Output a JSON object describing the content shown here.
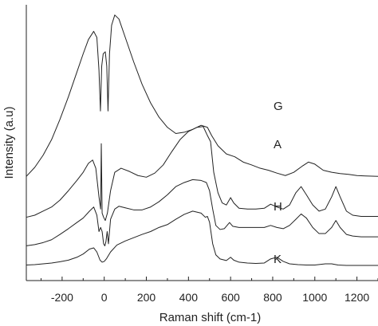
{
  "chart_data": {
    "type": "line",
    "title": "",
    "xlabel": "Raman shift (cm-1)",
    "ylabel": "Intensity (a.u)",
    "xlim": [
      -370,
      1300
    ],
    "x_ticks": [
      -200,
      0,
      200,
      400,
      600,
      800,
      1000,
      1200
    ],
    "x_tick_labels": [
      "-200",
      "0",
      "200",
      "400",
      "600",
      "800",
      "1000",
      "1200"
    ],
    "y_ticks_shown": false,
    "grid": false,
    "series": [
      {
        "name": "G",
        "points": [
          [
            -370,
            2.2
          ],
          [
            -330,
            2.42
          ],
          [
            -290,
            2.72
          ],
          [
            -250,
            3.1
          ],
          [
            -210,
            3.6
          ],
          [
            -170,
            4.15
          ],
          [
            -130,
            4.75
          ],
          [
            -100,
            5.2
          ],
          [
            -75,
            5.55
          ],
          [
            -50,
            5.75
          ],
          [
            -35,
            5.6
          ],
          [
            -25,
            4.8
          ],
          [
            -18,
            3.8
          ],
          [
            -12,
            4.9
          ],
          [
            -5,
            5.2
          ],
          [
            5,
            5.25
          ],
          [
            12,
            4.9
          ],
          [
            18,
            3.8
          ],
          [
            25,
            5.2
          ],
          [
            35,
            5.9
          ],
          [
            50,
            6.15
          ],
          [
            70,
            6.05
          ],
          [
            100,
            5.6
          ],
          [
            140,
            5.0
          ],
          [
            180,
            4.45
          ],
          [
            220,
            4.0
          ],
          [
            260,
            3.65
          ],
          [
            300,
            3.4
          ],
          [
            340,
            3.25
          ],
          [
            380,
            3.28
          ],
          [
            420,
            3.35
          ],
          [
            460,
            3.45
          ],
          [
            490,
            3.4
          ],
          [
            510,
            3.2
          ],
          [
            540,
            2.95
          ],
          [
            580,
            2.75
          ],
          [
            620,
            2.68
          ],
          [
            660,
            2.55
          ],
          [
            700,
            2.48
          ],
          [
            740,
            2.4
          ],
          [
            780,
            2.35
          ],
          [
            820,
            2.28
          ],
          [
            860,
            2.22
          ],
          [
            900,
            2.3
          ],
          [
            940,
            2.45
          ],
          [
            970,
            2.55
          ],
          [
            1000,
            2.5
          ],
          [
            1040,
            2.35
          ],
          [
            1080,
            2.3
          ],
          [
            1120,
            2.27
          ],
          [
            1160,
            2.25
          ],
          [
            1200,
            2.22
          ],
          [
            1240,
            2.21
          ],
          [
            1300,
            2.2
          ]
        ]
      },
      {
        "name": "A",
        "points": [
          [
            -370,
            1.2
          ],
          [
            -330,
            1.25
          ],
          [
            -290,
            1.35
          ],
          [
            -250,
            1.45
          ],
          [
            -210,
            1.62
          ],
          [
            -170,
            1.85
          ],
          [
            -130,
            2.1
          ],
          [
            -100,
            2.3
          ],
          [
            -75,
            2.52
          ],
          [
            -55,
            2.6
          ],
          [
            -40,
            2.4
          ],
          [
            -25,
            1.7
          ],
          [
            -17,
            1.4
          ],
          [
            -14,
            3.0
          ],
          [
            -10,
            1.3
          ],
          [
            -3,
            1.2
          ],
          [
            5,
            1.12
          ],
          [
            15,
            1.3
          ],
          [
            30,
            1.85
          ],
          [
            50,
            2.3
          ],
          [
            80,
            2.4
          ],
          [
            120,
            2.32
          ],
          [
            160,
            2.22
          ],
          [
            200,
            2.18
          ],
          [
            240,
            2.28
          ],
          [
            280,
            2.48
          ],
          [
            320,
            2.8
          ],
          [
            360,
            3.1
          ],
          [
            400,
            3.3
          ],
          [
            440,
            3.4
          ],
          [
            470,
            3.42
          ],
          [
            490,
            3.2
          ],
          [
            505,
            3.05
          ],
          [
            520,
            2.3
          ],
          [
            540,
            1.8
          ],
          [
            560,
            1.55
          ],
          [
            580,
            1.5
          ],
          [
            600,
            1.68
          ],
          [
            615,
            1.55
          ],
          [
            640,
            1.42
          ],
          [
            680,
            1.4
          ],
          [
            720,
            1.4
          ],
          [
            760,
            1.42
          ],
          [
            790,
            1.52
          ],
          [
            820,
            1.45
          ],
          [
            850,
            1.4
          ],
          [
            880,
            1.5
          ],
          [
            910,
            1.8
          ],
          [
            935,
            1.95
          ],
          [
            960,
            1.75
          ],
          [
            990,
            1.5
          ],
          [
            1020,
            1.35
          ],
          [
            1050,
            1.4
          ],
          [
            1080,
            1.7
          ],
          [
            1100,
            1.95
          ],
          [
            1120,
            1.7
          ],
          [
            1150,
            1.35
          ],
          [
            1180,
            1.25
          ],
          [
            1220,
            1.22
          ],
          [
            1260,
            1.22
          ],
          [
            1300,
            1.22
          ]
        ]
      },
      {
        "name": "H",
        "points": [
          [
            -370,
            0.5
          ],
          [
            -330,
            0.53
          ],
          [
            -290,
            0.58
          ],
          [
            -250,
            0.65
          ],
          [
            -210,
            0.78
          ],
          [
            -170,
            0.92
          ],
          [
            -130,
            1.07
          ],
          [
            -100,
            1.18
          ],
          [
            -70,
            1.35
          ],
          [
            -50,
            1.45
          ],
          [
            -35,
            1.25
          ],
          [
            -25,
            0.85
          ],
          [
            -17,
            0.95
          ],
          [
            -10,
            0.85
          ],
          [
            -3,
            0.55
          ],
          [
            3,
            0.5
          ],
          [
            8,
            0.6
          ],
          [
            14,
            0.85
          ],
          [
            20,
            0.55
          ],
          [
            30,
            1.15
          ],
          [
            50,
            1.4
          ],
          [
            70,
            1.47
          ],
          [
            100,
            1.43
          ],
          [
            140,
            1.38
          ],
          [
            180,
            1.38
          ],
          [
            220,
            1.45
          ],
          [
            260,
            1.58
          ],
          [
            300,
            1.75
          ],
          [
            340,
            1.95
          ],
          [
            380,
            2.05
          ],
          [
            420,
            2.12
          ],
          [
            460,
            2.1
          ],
          [
            485,
            2.05
          ],
          [
            500,
            1.85
          ],
          [
            515,
            1.4
          ],
          [
            530,
            1.0
          ],
          [
            550,
            0.9
          ],
          [
            570,
            0.92
          ],
          [
            595,
            1.07
          ],
          [
            610,
            0.98
          ],
          [
            640,
            0.95
          ],
          [
            680,
            0.95
          ],
          [
            720,
            0.95
          ],
          [
            760,
            0.95
          ],
          [
            790,
            1.0
          ],
          [
            820,
            0.95
          ],
          [
            850,
            0.92
          ],
          [
            880,
            1.0
          ],
          [
            910,
            1.15
          ],
          [
            935,
            1.28
          ],
          [
            960,
            1.18
          ],
          [
            990,
            0.95
          ],
          [
            1020,
            0.8
          ],
          [
            1050,
            0.8
          ],
          [
            1080,
            0.95
          ],
          [
            1100,
            1.12
          ],
          [
            1120,
            0.95
          ],
          [
            1150,
            0.78
          ],
          [
            1180,
            0.74
          ],
          [
            1220,
            0.72
          ],
          [
            1260,
            0.72
          ],
          [
            1300,
            0.72
          ]
        ]
      },
      {
        "name": "K",
        "points": [
          [
            -370,
            0.03
          ],
          [
            -330,
            0.04
          ],
          [
            -290,
            0.06
          ],
          [
            -250,
            0.08
          ],
          [
            -210,
            0.11
          ],
          [
            -170,
            0.15
          ],
          [
            -130,
            0.22
          ],
          [
            -100,
            0.3
          ],
          [
            -70,
            0.42
          ],
          [
            -50,
            0.45
          ],
          [
            -35,
            0.35
          ],
          [
            -20,
            0.15
          ],
          [
            -10,
            0.1
          ],
          [
            0,
            0.12
          ],
          [
            10,
            0.18
          ],
          [
            30,
            0.35
          ],
          [
            60,
            0.52
          ],
          [
            100,
            0.62
          ],
          [
            140,
            0.7
          ],
          [
            180,
            0.78
          ],
          [
            220,
            0.85
          ],
          [
            260,
            0.95
          ],
          [
            300,
            1.02
          ],
          [
            340,
            1.15
          ],
          [
            380,
            1.27
          ],
          [
            420,
            1.35
          ],
          [
            460,
            1.3
          ],
          [
            480,
            1.2
          ],
          [
            490,
            1.22
          ],
          [
            500,
            1.08
          ],
          [
            515,
            0.55
          ],
          [
            530,
            0.28
          ],
          [
            550,
            0.18
          ],
          [
            580,
            0.14
          ],
          [
            600,
            0.22
          ],
          [
            615,
            0.15
          ],
          [
            640,
            0.1
          ],
          [
            680,
            0.08
          ],
          [
            720,
            0.07
          ],
          [
            760,
            0.08
          ],
          [
            790,
            0.18
          ],
          [
            820,
            0.22
          ],
          [
            850,
            0.12
          ],
          [
            880,
            0.06
          ],
          [
            920,
            0.04
          ],
          [
            960,
            0.03
          ],
          [
            1000,
            0.03
          ],
          [
            1050,
            0.06
          ],
          [
            1080,
            0.06
          ],
          [
            1110,
            0.03
          ],
          [
            1150,
            0.02
          ],
          [
            1200,
            0.02
          ],
          [
            1250,
            0.02
          ],
          [
            1300,
            0.02
          ]
        ]
      }
    ],
    "ylim": [
      -0.35,
      6.4
    ]
  }
}
